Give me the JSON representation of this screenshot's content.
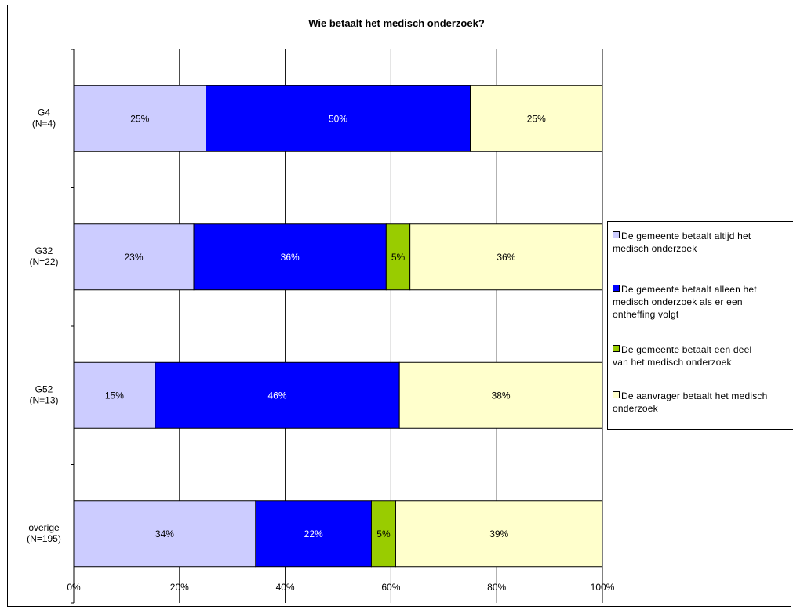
{
  "chart_data": {
    "type": "bar",
    "orientation": "horizontal",
    "stacked": true,
    "percent_stacked": true,
    "title": "Wie betaalt  het medisch  onderzoek?",
    "categories": [
      "G4\n(N=4)",
      "G32\n(N=22)",
      "G52\n(N=13)",
      "overige\n(N=195)"
    ],
    "series": [
      {
        "name": "De gemeente betaalt altijd het medisch onderzoek",
        "color": "#ccccff",
        "values": [
          25,
          22.7,
          15.4,
          34.4
        ],
        "labels": [
          "25%",
          "23%",
          "15%",
          "34%"
        ]
      },
      {
        "name": "De gemeente betaalt alleen het medisch onderzoek als er een ontheffing volgt",
        "color": "#0000ff",
        "values": [
          50,
          36.4,
          46.2,
          21.9
        ],
        "labels": [
          "50%",
          "36%",
          "46%",
          "22%"
        ]
      },
      {
        "name": "De gemeente betaalt een deel van het medisch onderzoek",
        "color": "#99cc00",
        "values": [
          0,
          4.5,
          0,
          4.6
        ],
        "labels": [
          "",
          "5%",
          "",
          "5%"
        ]
      },
      {
        "name": "De aanvrager betaalt het medisch onderzoek",
        "color": "#ffffcc",
        "values": [
          25,
          36.4,
          38.4,
          39.1
        ],
        "labels": [
          "25%",
          "36%",
          "38%",
          "39%"
        ]
      }
    ],
    "xlim": [
      0,
      100
    ],
    "x_ticks": [
      "0%",
      "20%",
      "40%",
      "60%",
      "80%",
      "100%"
    ],
    "grid": true,
    "legend_position": "right"
  },
  "legend_lines": [
    [
      "De gemeente betaalt altijd het",
      "medisch onderzoek"
    ],
    [
      "De gemeente betaalt alleen het",
      "medisch onderzoek als er een",
      "ontheffing volgt"
    ],
    [
      "De gemeente betaalt een deel",
      "van het medisch onderzoek"
    ],
    [
      "De aanvrager betaalt het medisch",
      "onderzoek"
    ]
  ]
}
